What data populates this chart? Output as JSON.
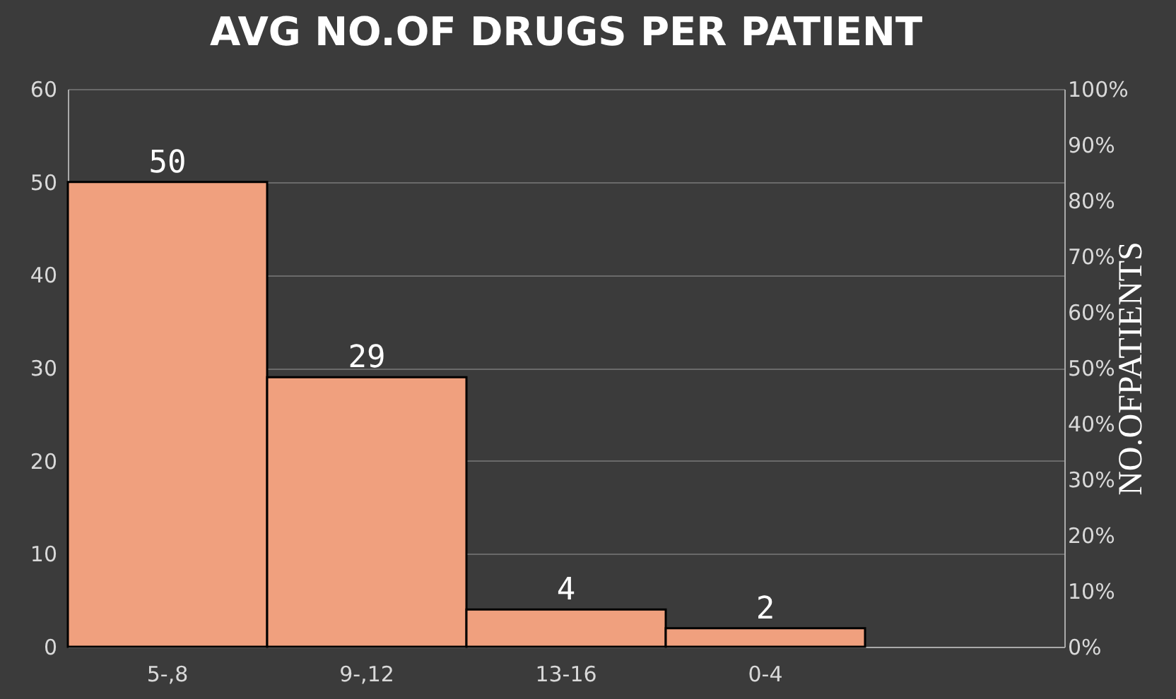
{
  "chart_data": {
    "type": "bar",
    "title": "AVG NO.OF DRUGS PER PATIENT",
    "categories": [
      "5-,8",
      "9-,12",
      "13-16",
      "0-4",
      null
    ],
    "values": [
      50,
      29,
      4,
      2,
      null
    ],
    "color": "#f0a07e",
    "ylim": [
      0,
      60
    ],
    "yticks": [
      0,
      10,
      20,
      30,
      40,
      50,
      60
    ],
    "y2label": "NO.OFPATIENTS",
    "y2lim": [
      0,
      100
    ],
    "y2ticks": [
      {
        "value": 0,
        "label": "0%"
      },
      {
        "value": 10,
        "label": "10%"
      },
      {
        "value": 20,
        "label": "20%"
      },
      {
        "value": 30,
        "label": "30%"
      },
      {
        "value": 40,
        "label": "40%"
      },
      {
        "value": 50,
        "label": "50%"
      },
      {
        "value": 60,
        "label": "60%"
      },
      {
        "value": 70,
        "label": "70%"
      },
      {
        "value": 80,
        "label": "80%"
      },
      {
        "value": 90,
        "label": "90%"
      },
      {
        "value": 100,
        "label": "100%"
      }
    ],
    "grid": "y",
    "data_labels": true
  }
}
